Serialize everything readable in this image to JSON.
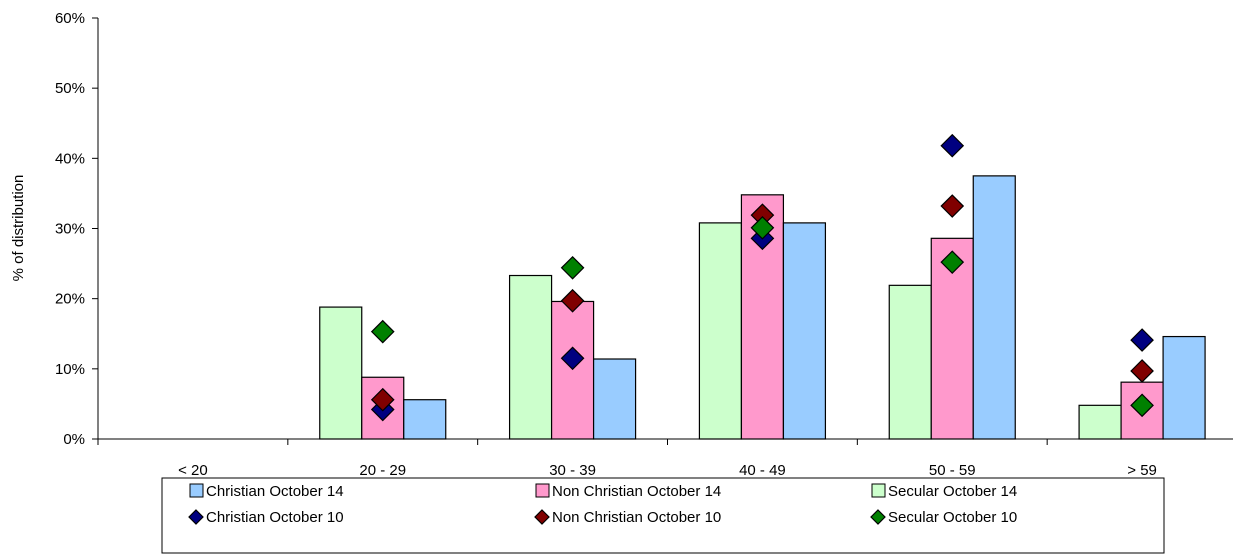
{
  "chart_data": {
    "type": "bar",
    "categories": [
      "< 20",
      "20 - 29",
      "30 - 39",
      "40 - 49",
      "50 - 59",
      "> 59"
    ],
    "ylabel": "% of distribution",
    "ylim": [
      0,
      60
    ],
    "yticks": [
      "0%",
      "10%",
      "20%",
      "30%",
      "40%",
      "50%",
      "60%"
    ],
    "grid": false,
    "legend_position": "bottom",
    "bar_series": [
      {
        "name": "Secular October 14",
        "color": "#ccffcc",
        "values": [
          0,
          18.8,
          23.3,
          30.8,
          21.9,
          4.8
        ]
      },
      {
        "name": "Non Christian October 14",
        "color": "#ff99cc",
        "values": [
          0,
          8.8,
          19.6,
          34.8,
          28.6,
          8.1
        ]
      },
      {
        "name": "Christian October 14",
        "color": "#99ccff",
        "values": [
          0,
          5.6,
          11.4,
          30.8,
          37.5,
          14.6
        ]
      }
    ],
    "marker_series": [
      {
        "name": "Christian October 10",
        "color": "#000080",
        "values": [
          null,
          4.2,
          11.5,
          28.6,
          41.8,
          14.1
        ]
      },
      {
        "name": "Non Christian October 10",
        "color": "#800000",
        "values": [
          null,
          5.6,
          19.7,
          31.9,
          33.2,
          9.7
        ]
      },
      {
        "name": "Secular October 10",
        "color": "#008000",
        "values": [
          null,
          15.3,
          24.4,
          30.1,
          25.2,
          4.8
        ]
      }
    ],
    "legend": [
      {
        "label": "Christian October 14",
        "kind": "bar",
        "color": "#99ccff"
      },
      {
        "label": "Non Christian October 14",
        "kind": "bar",
        "color": "#ff99cc"
      },
      {
        "label": "Secular October 14",
        "kind": "bar",
        "color": "#ccffcc"
      },
      {
        "label": "Christian October 10",
        "kind": "marker",
        "color": "#000080"
      },
      {
        "label": "Non Christian October 10",
        "kind": "marker",
        "color": "#800000"
      },
      {
        "label": "Secular October 10",
        "kind": "marker",
        "color": "#008000"
      }
    ]
  }
}
